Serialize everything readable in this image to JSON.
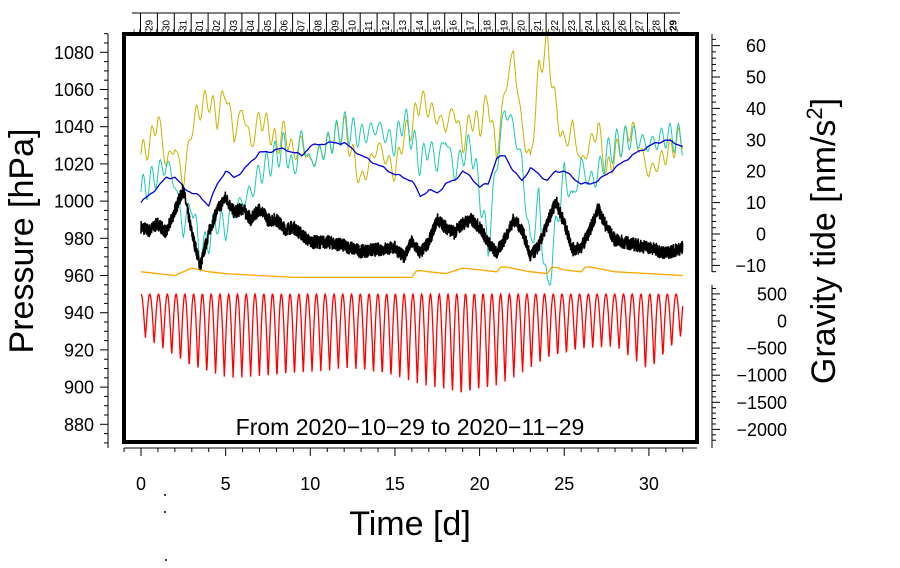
{
  "chart_data": {
    "type": "line",
    "annotation": "From 2020−10−29 to 2020−11−29",
    "xlabel": "Time [d]",
    "xlim": [
      -1,
      32.5
    ],
    "x_ticks": [
      "0",
      "5",
      "10",
      "15",
      "20",
      "25",
      "30"
    ],
    "x_tick_values": [
      0,
      5,
      10,
      15,
      20,
      25,
      30
    ],
    "left_axis": {
      "label": "Pressure [hPa]",
      "ylim": [
        868,
        1090
      ],
      "ticks": [
        "880",
        "900",
        "920",
        "940",
        "960",
        "980",
        "1000",
        "1020",
        "1040",
        "1060",
        "1080"
      ],
      "tick_values": [
        880,
        900,
        920,
        940,
        960,
        980,
        1000,
        1020,
        1040,
        1060,
        1080
      ]
    },
    "right_axis_upper": {
      "label": "Gravity tide [nm/s²]",
      "label_main": "Gravity tide [nm/s",
      "label_sup": "2",
      "label_end": "]",
      "ticks": [
        "60",
        "50",
        "40",
        "30",
        "20",
        "10",
        "0",
        "−10"
      ],
      "tick_values": [
        60,
        50,
        40,
        30,
        20,
        10,
        0,
        -10
      ]
    },
    "right_axis_lower": {
      "ticks": [
        "500",
        "0",
        "−500",
        "−1000",
        "−1500",
        "−2000"
      ],
      "tick_values": [
        500,
        0,
        -500,
        -1000,
        -1500,
        -2000
      ]
    },
    "date_labels": [
      "29",
      "30",
      "31",
      "01",
      "02",
      "03",
      "04",
      "05",
      "06",
      "07",
      "08",
      "09",
      "10",
      "11",
      "12",
      "13",
      "14",
      "15",
      "16",
      "17",
      "18",
      "19",
      "20",
      "21",
      "22",
      "23",
      "24",
      "25",
      "26",
      "27",
      "28",
      "29"
    ],
    "series": [
      {
        "name": "pressure",
        "color": "#000000",
        "axis": "left",
        "x": [
          0,
          0.5,
          1,
          1.5,
          2,
          2.5,
          3,
          3.5,
          4,
          4.5,
          5,
          5.5,
          6,
          6.5,
          7,
          7.5,
          8,
          8.5,
          9,
          9.5,
          10,
          11,
          12,
          13,
          14,
          15,
          15.5,
          16,
          16.5,
          17,
          17.5,
          18,
          18.5,
          19,
          19.5,
          20,
          20.5,
          21,
          21.5,
          22,
          22.5,
          23,
          23.5,
          24,
          24.5,
          25,
          25.5,
          26,
          26.5,
          27,
          27.5,
          28,
          29,
          30,
          31,
          32
        ],
        "y": [
          986,
          984,
          988,
          983,
          995,
          1006,
          983,
          965,
          983,
          995,
          1002,
          994,
          996,
          990,
          996,
          990,
          990,
          985,
          986,
          982,
          978,
          978,
          976,
          973,
          974,
          975,
          970,
          978,
          972,
          978,
          990,
          986,
          983,
          988,
          990,
          986,
          978,
          972,
          980,
          990,
          985,
          970,
          976,
          988,
          1000,
          988,
          974,
          975,
          984,
          996,
          986,
          979,
          977,
          975,
          972,
          975
        ]
      },
      {
        "name": "gravity-tide",
        "color": "#0000dd",
        "axis": "right-upper",
        "x": [
          0,
          1,
          1.5,
          2,
          2.5,
          3,
          3.5,
          4,
          4.5,
          5,
          5.5,
          6,
          6.5,
          7,
          7.5,
          8,
          8.5,
          9,
          9.5,
          10,
          11,
          12,
          13,
          14,
          15,
          16,
          16.5,
          17,
          17.5,
          18,
          18.5,
          19,
          19.5,
          20,
          20.5,
          21,
          21.5,
          22,
          22.5,
          23,
          23.5,
          24,
          24.5,
          25,
          25.5,
          26,
          26.5,
          27,
          28,
          29,
          30,
          31,
          32
        ],
        "y": [
          10,
          15,
          18,
          18,
          15,
          13,
          12,
          9,
          16,
          20,
          18,
          20,
          23,
          26,
          26,
          27,
          27,
          26,
          25,
          28,
          29,
          29,
          25,
          22,
          19,
          17,
          12,
          14,
          13,
          16,
          17,
          20,
          18,
          15,
          16,
          24,
          25,
          20,
          17,
          21,
          19,
          17,
          20,
          20,
          18,
          16,
          16,
          17,
          21,
          25,
          28,
          30,
          28
        ]
      },
      {
        "name": "pressure-tide",
        "color": "#c8b400",
        "axis": "left",
        "x": [
          0,
          0.5,
          1,
          1.5,
          2,
          2.5,
          3,
          3.5,
          4,
          4.5,
          5,
          5.5,
          6,
          6.5,
          7,
          7.5,
          8,
          8.5,
          9,
          9.5,
          10,
          11,
          12,
          13,
          14,
          15,
          15.5,
          16,
          16.5,
          17,
          17.5,
          18,
          18.5,
          19,
          19.5,
          20,
          20.5,
          21,
          21.5,
          22,
          22.5,
          23,
          23.5,
          24,
          24.5,
          25,
          25.5,
          26,
          26.5,
          27,
          27.5,
          28,
          29,
          30,
          31,
          32
        ],
        "y": [
          1025,
          1030,
          1045,
          1020,
          1030,
          1010,
          1040,
          1050,
          1055,
          1045,
          1060,
          1035,
          1050,
          1030,
          1045,
          1040,
          1030,
          1038,
          1025,
          1032,
          1020,
          1030,
          1040,
          1010,
          1030,
          1015,
          1035,
          1040,
          1055,
          1050,
          1045,
          1040,
          1050,
          1030,
          1045,
          1040,
          1055,
          1025,
          1060,
          1080,
          1040,
          1020,
          1070,
          1085,
          1050,
          1030,
          1040,
          1020,
          1030,
          1040,
          1015,
          1025,
          1040,
          1015,
          1025,
          1035
        ]
      },
      {
        "name": "temperature",
        "color": "#1ec8b4",
        "axis": "left",
        "x": [
          0,
          0.5,
          1,
          1.5,
          2,
          2.5,
          3,
          3.5,
          4,
          4.5,
          5,
          5.5,
          6,
          6.5,
          7,
          7.5,
          8,
          8.5,
          9,
          9.5,
          10,
          11,
          12,
          13,
          14,
          15,
          15.5,
          16,
          16.5,
          17,
          17.5,
          18,
          18.5,
          19,
          19.5,
          20,
          20.5,
          21,
          21.5,
          22,
          22.5,
          23,
          23.5,
          24,
          24.5,
          25,
          25.5,
          26,
          26.5,
          27,
          27.5,
          28,
          29,
          30,
          31,
          32
        ],
        "y": [
          1005,
          1010,
          1015,
          1020,
          1010,
          985,
          1000,
          970,
          980,
          990,
          985,
          995,
          1000,
          1005,
          1015,
          1020,
          1025,
          1030,
          1015,
          1035,
          1020,
          1030,
          1040,
          1035,
          1040,
          1030,
          1045,
          1035,
          1020,
          1030,
          1020,
          1035,
          1015,
          1025,
          1030,
          1005,
          975,
          1020,
          1050,
          1040,
          1020,
          975,
          1000,
          950,
          985,
          1015,
          1000,
          1020,
          1010,
          1015,
          1025,
          1030,
          1035,
          1030,
          1035,
          1033
        ]
      },
      {
        "name": "orange-series",
        "color": "#ffa500",
        "axis": "left",
        "x": [
          0,
          1,
          2,
          3,
          4,
          5,
          7,
          9,
          11,
          14,
          16,
          16.3,
          17,
          18,
          19,
          21,
          21.3,
          23,
          24,
          24.3,
          25,
          26,
          26.3,
          28,
          30,
          32
        ],
        "y": [
          962,
          961,
          960,
          964,
          962,
          961,
          960,
          959,
          959,
          959,
          959,
          963,
          962,
          961,
          964,
          962,
          965,
          962,
          961,
          965,
          963,
          962,
          965,
          962,
          961,
          960
        ]
      },
      {
        "name": "red-series",
        "color": "#ff0000",
        "axis": "left",
        "amplitude_profile": {
          "x": [
            0,
            3,
            5,
            8,
            12,
            15,
            18,
            19,
            21,
            24,
            26,
            28,
            30,
            32
          ],
          "min_y": [
            928,
            910,
            905,
            905,
            910,
            905,
            898,
            895,
            900,
            915,
            920,
            922,
            908,
            928
          ]
        },
        "max_y": 950,
        "cycles_per_day": 1.93
      }
    ]
  }
}
